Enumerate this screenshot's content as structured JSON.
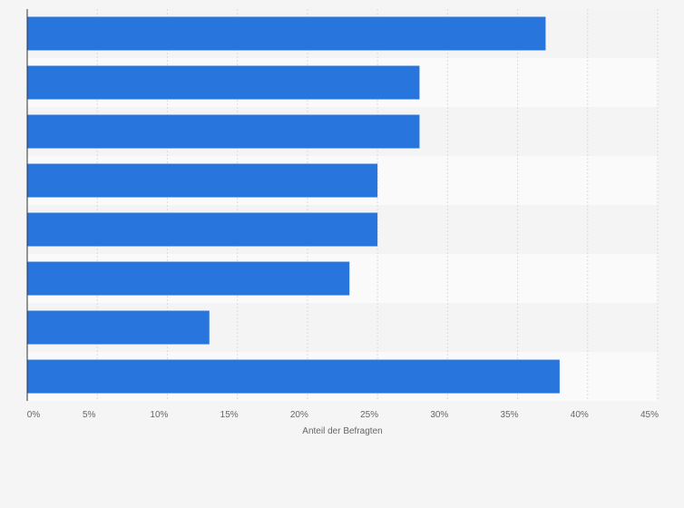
{
  "chart_data": {
    "type": "bar",
    "orientation": "horizontal",
    "categories": [
      "",
      "",
      "",
      "",
      "",
      "",
      "",
      ""
    ],
    "values": [
      37,
      28,
      28,
      25,
      25,
      23,
      13,
      38
    ],
    "title": "",
    "xlabel": "Anteil der Befragten",
    "ylabel": "",
    "xlim": [
      0,
      45
    ],
    "x_ticks": [
      {
        "value": 0,
        "label": "0%"
      },
      {
        "value": 5,
        "label": "5%"
      },
      {
        "value": 10,
        "label": "10%"
      },
      {
        "value": 15,
        "label": "15%"
      },
      {
        "value": 20,
        "label": "20%"
      },
      {
        "value": 25,
        "label": "25%"
      },
      {
        "value": 30,
        "label": "30%"
      },
      {
        "value": 35,
        "label": "35%"
      },
      {
        "value": 40,
        "label": "40%"
      },
      {
        "value": 45,
        "label": "45%"
      }
    ],
    "grid": true,
    "bar_color": "#2876dd",
    "band_colors": [
      "#f4f4f4",
      "#fafafa"
    ]
  }
}
